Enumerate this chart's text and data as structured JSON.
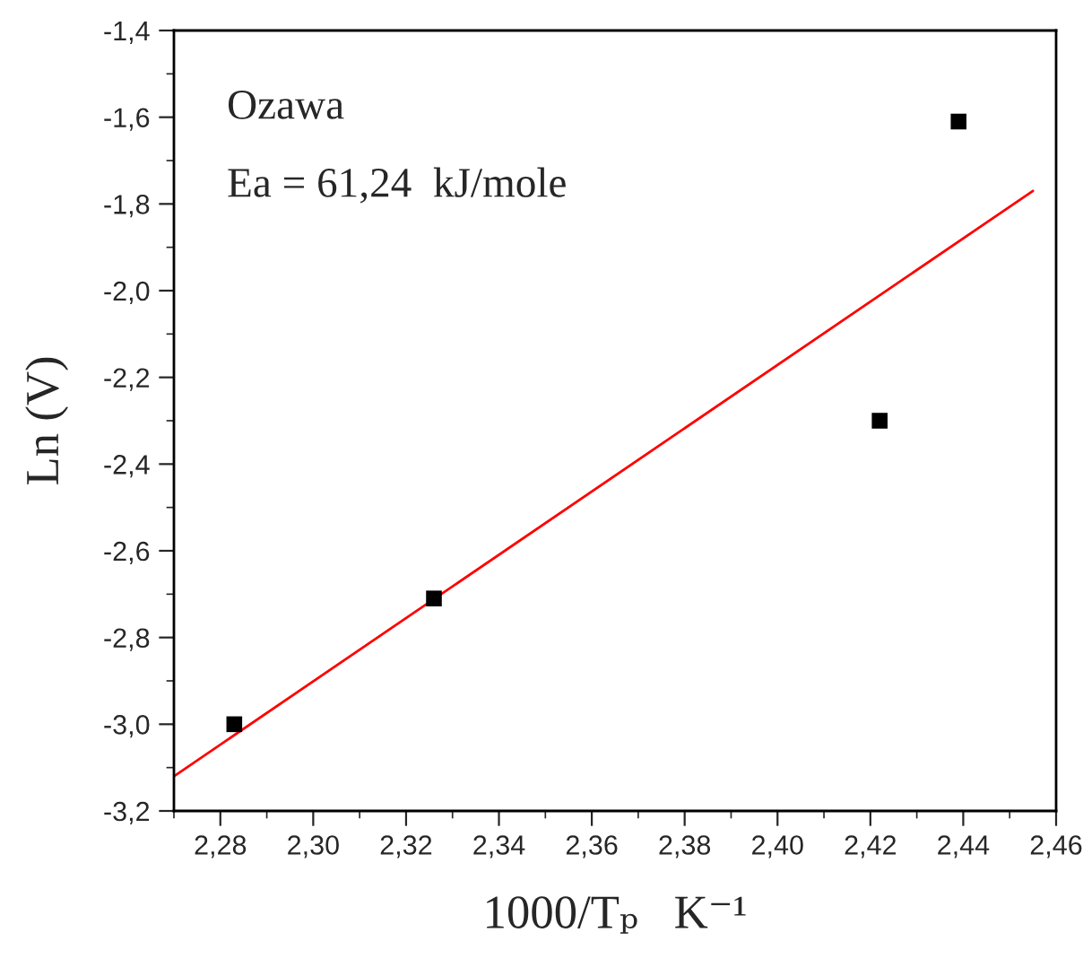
{
  "chart_data": {
    "type": "scatter",
    "xlabel": "1000/Tₚ   K⁻¹",
    "ylabel": "Ln (V)",
    "annotations": [
      "Ozawa",
      "Ea = 61,24  kJ/mole"
    ],
    "series": [
      {
        "color": "#000000",
        "marker": "square",
        "x": [
          2.283,
          2.326,
          2.422,
          2.439
        ],
        "values": [
          -3.0,
          -2.71,
          -2.3,
          -1.61
        ]
      },
      {
        "type": "line",
        "color": "#ff0000",
        "marker": "none",
        "line_style": "solid",
        "x": [
          2.27,
          2.455
        ],
        "values": [
          -3.12,
          -1.77
        ]
      }
    ],
    "xlim": [
      2.27,
      2.46
    ],
    "xticks": [
      {
        "value": 2.28,
        "label": "2,28"
      },
      {
        "value": 2.3,
        "label": "2,30"
      },
      {
        "value": 2.32,
        "label": "2,32"
      },
      {
        "value": 2.34,
        "label": "2,34"
      },
      {
        "value": 2.36,
        "label": "2,36"
      },
      {
        "value": 2.38,
        "label": "2,38"
      },
      {
        "value": 2.4,
        "label": "2,40"
      },
      {
        "value": 2.42,
        "label": "2,42"
      },
      {
        "value": 2.44,
        "label": "2,44"
      },
      {
        "value": 2.46,
        "label": "2,46"
      }
    ],
    "ylim": [
      -3.2,
      -1.4
    ],
    "yticks": [
      {
        "value": -3.2,
        "label": "-3,2"
      },
      {
        "value": -3.0,
        "label": "-3,0"
      },
      {
        "value": -2.8,
        "label": "-2,8"
      },
      {
        "value": -2.6,
        "label": "-2,6"
      },
      {
        "value": -2.4,
        "label": "-2,4"
      },
      {
        "value": -2.2,
        "label": "-2,2"
      },
      {
        "value": -2.0,
        "label": "-2,0"
      },
      {
        "value": -1.8,
        "label": "-1,8"
      },
      {
        "value": -1.6,
        "label": "-1,6"
      },
      {
        "value": -1.4,
        "label": "-1,4"
      }
    ],
    "grid": false,
    "legend": false
  }
}
